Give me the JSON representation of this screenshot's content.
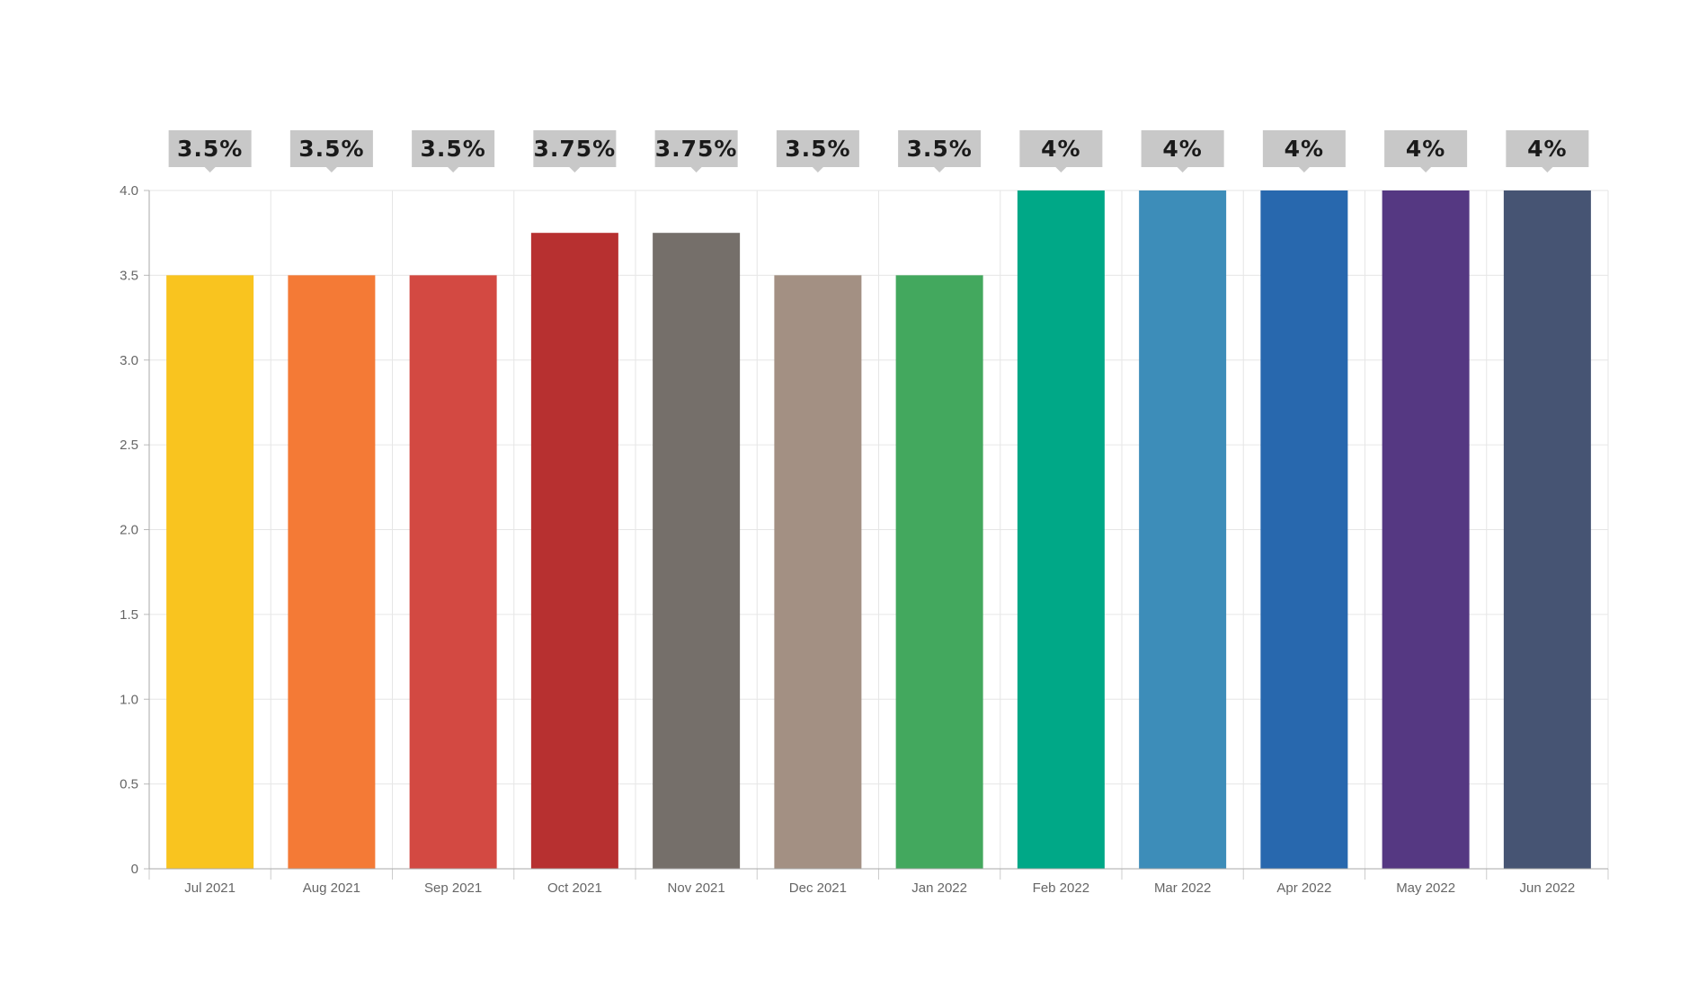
{
  "chart_data": {
    "type": "bar",
    "categories": [
      "Jul 2021",
      "Aug 2021",
      "Sep 2021",
      "Oct 2021",
      "Nov 2021",
      "Dec 2021",
      "Jan 2022",
      "Feb 2022",
      "Mar 2022",
      "Apr 2022",
      "May 2022",
      "Jun 2022"
    ],
    "values": [
      3.5,
      3.5,
      3.5,
      3.75,
      3.75,
      3.5,
      3.5,
      4,
      4,
      4,
      4,
      4
    ],
    "data_labels": [
      "3.5%",
      "3.5%",
      "3.5%",
      "3.75%",
      "3.75%",
      "3.5%",
      "3.5%",
      "4%",
      "4%",
      "4%",
      "4%",
      "4%"
    ],
    "colors": [
      "#f9c41f",
      "#f47a36",
      "#d34942",
      "#b73030",
      "#756f6a",
      "#a39083",
      "#43a85e",
      "#00a887",
      "#3d8db9",
      "#2868ae",
      "#553882",
      "#465473"
    ],
    "yticks": [
      "0",
      "0.5",
      "1.0",
      "1.5",
      "2.0",
      "2.5",
      "3.0",
      "3.5",
      "4.0"
    ],
    "ylim": [
      0,
      4
    ],
    "title": "",
    "xlabel": "",
    "ylabel": "",
    "grid": true,
    "legend": "none",
    "label_box_color": "#c8c8c8"
  }
}
